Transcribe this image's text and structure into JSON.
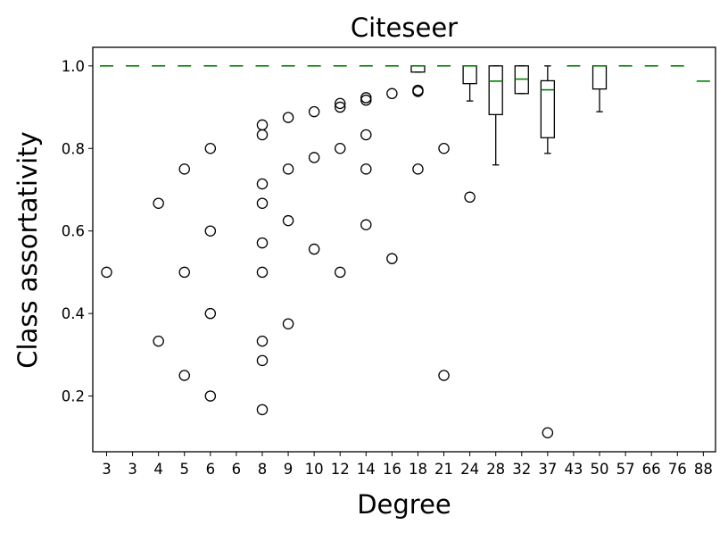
{
  "chart_data": {
    "type": "boxplot",
    "title": "Citeseer",
    "xlabel": "Degree",
    "ylabel": "Class assortativity",
    "categories": [
      "3",
      "3",
      "4",
      "5",
      "6",
      "6",
      "8",
      "9",
      "10",
      "12",
      "14",
      "16",
      "18",
      "21",
      "24",
      "28",
      "32",
      "37",
      "43",
      "50",
      "57",
      "66",
      "76",
      "88"
    ],
    "ylim": [
      0.065,
      1.045
    ],
    "yticks": [
      0.2,
      0.4,
      0.6,
      0.8,
      1.0
    ],
    "yticklabels": [
      "0.2",
      "0.4",
      "0.6",
      "0.8",
      "1.0"
    ],
    "grid": false,
    "legend": "none",
    "median_color": "#008000",
    "boxes": [
      {
        "category_index": 12,
        "q1": 0.985,
        "median": 1.0,
        "q3": 1.0,
        "whisker_low": 0.985,
        "whisker_high": 1.0
      },
      {
        "category_index": 14,
        "q1": 0.957,
        "median": 1.0,
        "q3": 1.0,
        "whisker_low": 0.915,
        "whisker_high": 1.0
      },
      {
        "category_index": 15,
        "q1": 0.882,
        "median": 0.963,
        "q3": 1.0,
        "whisker_low": 0.76,
        "whisker_high": 1.0
      },
      {
        "category_index": 16,
        "q1": 0.933,
        "median": 0.968,
        "q3": 1.0,
        "whisker_low": 0.933,
        "whisker_high": 1.0
      },
      {
        "category_index": 17,
        "q1": 0.826,
        "median": 0.942,
        "q3": 0.964,
        "whisker_low": 0.788,
        "whisker_high": 1.0
      },
      {
        "category_index": 19,
        "q1": 0.944,
        "median": 1.0,
        "q3": 1.0,
        "whisker_low": 0.889,
        "whisker_high": 1.0
      }
    ],
    "medians": [
      1.0,
      1.0,
      1.0,
      1.0,
      1.0,
      1.0,
      1.0,
      1.0,
      1.0,
      1.0,
      1.0,
      1.0,
      1.0,
      1.0,
      1.0,
      0.963,
      0.968,
      0.942,
      1.0,
      1.0,
      1.0,
      1.0,
      1.0,
      0.963
    ],
    "fliers": [
      {
        "category_index": 0,
        "values": [
          0.5
        ]
      },
      {
        "category_index": 2,
        "values": [
          0.667,
          0.333
        ]
      },
      {
        "category_index": 3,
        "values": [
          0.75,
          0.5,
          0.25
        ]
      },
      {
        "category_index": 4,
        "values": [
          0.8,
          0.6,
          0.4,
          0.2
        ]
      },
      {
        "category_index": 6,
        "values": [
          0.857,
          0.833,
          0.714,
          0.667,
          0.571,
          0.5,
          0.333,
          0.286,
          0.167
        ]
      },
      {
        "category_index": 7,
        "values": [
          0.875,
          0.75,
          0.625,
          0.375
        ]
      },
      {
        "category_index": 8,
        "values": [
          0.889,
          0.778,
          0.556
        ]
      },
      {
        "category_index": 9,
        "values": [
          0.909,
          0.9,
          0.8,
          0.5
        ]
      },
      {
        "category_index": 10,
        "values": [
          0.923,
          0.917,
          0.833,
          0.75,
          0.615
        ]
      },
      {
        "category_index": 11,
        "values": [
          0.933,
          0.533
        ]
      },
      {
        "category_index": 12,
        "values": [
          0.941,
          0.938,
          0.75
        ]
      },
      {
        "category_index": 13,
        "values": [
          0.8,
          0.25
        ]
      },
      {
        "category_index": 14,
        "values": [
          0.682
        ]
      },
      {
        "category_index": 17,
        "values": [
          0.111
        ]
      }
    ]
  }
}
